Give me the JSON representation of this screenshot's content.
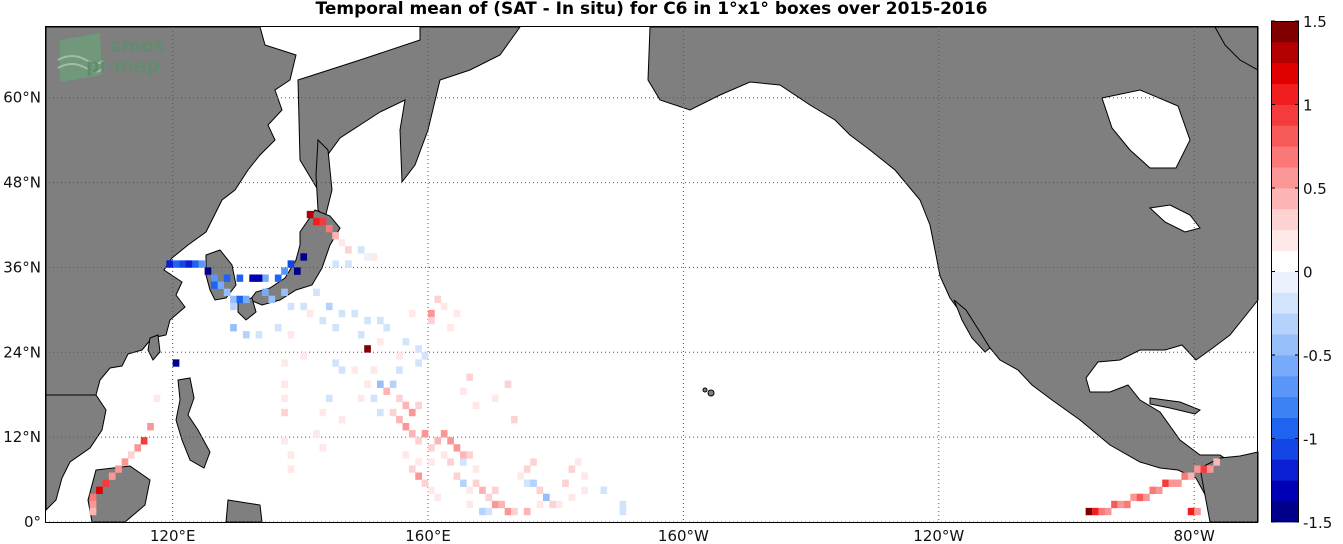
{
  "title": "Temporal mean of (SAT - In situ) for C6 in 1°x1° boxes over 2015-2016",
  "logo": {
    "line1": "smos",
    "line2": "pi-mep"
  },
  "map": {
    "projection": "equirectangular",
    "lon_range": [
      100,
      -70
    ],
    "lat_range": [
      0,
      70
    ],
    "land_color": "#7f7f7f",
    "ocean_color": "#ffffff",
    "grid": "dotted",
    "lon_ticks": [
      {
        "lon": 120,
        "label": "120°E"
      },
      {
        "lon": 160,
        "label": "160°E"
      },
      {
        "lon": -160,
        "label": "160°W"
      },
      {
        "lon": -120,
        "label": "120°W"
      },
      {
        "lon": -80,
        "label": "80°W"
      }
    ],
    "lat_ticks": [
      {
        "lat": 0,
        "label": "0°"
      },
      {
        "lat": 12,
        "label": "12°N"
      },
      {
        "lat": 24,
        "label": "24°N"
      },
      {
        "lat": 36,
        "label": "36°N"
      },
      {
        "lat": 48,
        "label": "48°N"
      },
      {
        "lat": 60,
        "label": "60°N"
      }
    ]
  },
  "colorbar": {
    "min": -1.5,
    "max": 1.5,
    "tick_values": [
      1.5,
      1,
      0.5,
      0,
      -0.5,
      -1,
      -1.5
    ],
    "tick_labels": [
      "1.5",
      "1",
      "0.5",
      "0",
      "-0.5",
      "-1",
      "-1.5"
    ],
    "colors": [
      "#00008b",
      "#0000b4",
      "#0a1ed2",
      "#1446e6",
      "#1e64f0",
      "#3c82f5",
      "#5a96f8",
      "#78aafa",
      "#96bef9",
      "#b4d2fb",
      "#d2e4fc",
      "#ebf2fe",
      "#ffffff",
      "#fee8e8",
      "#fdd2d2",
      "#fcb4b4",
      "#fb9696",
      "#fa7878",
      "#f85a5a",
      "#f43c3c",
      "#f01e1e",
      "#e00000",
      "#b40000",
      "#800000"
    ]
  },
  "chart_data": {
    "type": "heatmap",
    "title": "Temporal mean of (SAT - In situ) for C6 in 1°x1° boxes over 2015-2016",
    "x_label": "longitude",
    "y_label": "latitude",
    "value_range": [
      -1.5,
      1.5
    ],
    "cells": [
      {
        "lon": 141,
        "lat": 43,
        "v": 1.3
      },
      {
        "lon": 142,
        "lat": 42,
        "v": 1.0
      },
      {
        "lon": 143,
        "lat": 42,
        "v": 0.9
      },
      {
        "lon": 144,
        "lat": 41,
        "v": 0.7
      },
      {
        "lon": 145,
        "lat": 40,
        "v": 0.4
      },
      {
        "lon": 146,
        "lat": 39,
        "v": 0.2
      },
      {
        "lon": 147,
        "lat": 38,
        "v": 0.3
      },
      {
        "lon": 149,
        "lat": 38,
        "v": -0.2
      },
      {
        "lon": 150,
        "lat": 37,
        "v": -0.1
      },
      {
        "lon": 151,
        "lat": 37,
        "v": 0.15
      },
      {
        "lon": 145,
        "lat": 36,
        "v": -0.25
      },
      {
        "lon": 147,
        "lat": 36,
        "v": -0.2
      },
      {
        "lon": 140,
        "lat": 37,
        "v": -1.5
      },
      {
        "lon": 139,
        "lat": 35,
        "v": -1.4
      },
      {
        "lon": 138,
        "lat": 36,
        "v": -1.1
      },
      {
        "lon": 137,
        "lat": 35,
        "v": -0.7
      },
      {
        "lon": 136,
        "lat": 34,
        "v": -0.9
      },
      {
        "lon": 134,
        "lat": 34,
        "v": -0.6
      },
      {
        "lon": 133,
        "lat": 34,
        "v": -1.3
      },
      {
        "lon": 132,
        "lat": 34,
        "v": -1.3
      },
      {
        "lon": 130,
        "lat": 34,
        "v": -1.0
      },
      {
        "lon": 128,
        "lat": 34,
        "v": -0.9
      },
      {
        "lon": 127,
        "lat": 33,
        "v": -0.6
      },
      {
        "lon": 126,
        "lat": 34,
        "v": -0.7
      },
      {
        "lon": 126,
        "lat": 33,
        "v": -0.9
      },
      {
        "lon": 125,
        "lat": 35,
        "v": -1.5
      },
      {
        "lon": 124,
        "lat": 36,
        "v": -0.7
      },
      {
        "lon": 123,
        "lat": 36,
        "v": -0.9
      },
      {
        "lon": 122,
        "lat": 36,
        "v": -1.2
      },
      {
        "lon": 121,
        "lat": 36,
        "v": -1.1
      },
      {
        "lon": 120,
        "lat": 36,
        "v": -1.0
      },
      {
        "lon": 119,
        "lat": 36,
        "v": -1.2
      },
      {
        "lon": 128,
        "lat": 32,
        "v": -0.5
      },
      {
        "lon": 129,
        "lat": 31,
        "v": -0.4
      },
      {
        "lon": 130,
        "lat": 31,
        "v": -0.9
      },
      {
        "lon": 129,
        "lat": 30,
        "v": -0.3
      },
      {
        "lon": 131,
        "lat": 31,
        "v": -0.6
      },
      {
        "lon": 134,
        "lat": 32,
        "v": -0.6
      },
      {
        "lon": 135,
        "lat": 31,
        "v": -0.4
      },
      {
        "lon": 137,
        "lat": 32,
        "v": -0.5
      },
      {
        "lon": 138,
        "lat": 30,
        "v": -0.2
      },
      {
        "lon": 140,
        "lat": 30,
        "v": -0.2
      },
      {
        "lon": 142,
        "lat": 32,
        "v": -0.2
      },
      {
        "lon": 141,
        "lat": 29,
        "v": 0.15
      },
      {
        "lon": 144,
        "lat": 30,
        "v": -0.3
      },
      {
        "lon": 146,
        "lat": 29,
        "v": -0.2
      },
      {
        "lon": 148,
        "lat": 29,
        "v": -0.2
      },
      {
        "lon": 143,
        "lat": 28,
        "v": -0.2
      },
      {
        "lon": 150,
        "lat": 28,
        "v": -0.2
      },
      {
        "lon": 152,
        "lat": 28,
        "v": -0.25
      },
      {
        "lon": 153,
        "lat": 27,
        "v": -0.15
      },
      {
        "lon": 145,
        "lat": 27,
        "v": -0.2
      },
      {
        "lon": 136,
        "lat": 27,
        "v": -0.15
      },
      {
        "lon": 138,
        "lat": 26,
        "v": 0.15
      },
      {
        "lon": 129,
        "lat": 27,
        "v": -0.5
      },
      {
        "lon": 131,
        "lat": 26,
        "v": -0.3
      },
      {
        "lon": 133,
        "lat": 26,
        "v": -0.2
      },
      {
        "lon": 149,
        "lat": 26,
        "v": -0.2
      },
      {
        "lon": 152,
        "lat": 25,
        "v": 0.2
      },
      {
        "lon": 156,
        "lat": 25,
        "v": -0.15
      },
      {
        "lon": 158,
        "lat": 24,
        "v": -0.2
      },
      {
        "lon": 159,
        "lat": 23,
        "v": -0.15
      },
      {
        "lon": 150,
        "lat": 24,
        "v": 1.4
      },
      {
        "lon": 155,
        "lat": 23,
        "v": 0.15
      },
      {
        "lon": 145,
        "lat": 22,
        "v": -0.15
      },
      {
        "lon": 146,
        "lat": 21,
        "v": -0.2
      },
      {
        "lon": 148,
        "lat": 21,
        "v": 0.15
      },
      {
        "lon": 151,
        "lat": 21,
        "v": 0.2
      },
      {
        "lon": 155,
        "lat": 21,
        "v": -0.15
      },
      {
        "lon": 158,
        "lat": 22,
        "v": -0.2
      },
      {
        "lon": 160,
        "lat": 29,
        "v": 0.5
      },
      {
        "lon": 161,
        "lat": 31,
        "v": 0.3
      },
      {
        "lon": 162,
        "lat": 30,
        "v": 0.2
      },
      {
        "lon": 157,
        "lat": 29,
        "v": 0.2
      },
      {
        "lon": 160,
        "lat": 28,
        "v": 0.3
      },
      {
        "lon": 163,
        "lat": 27,
        "v": 0.2
      },
      {
        "lon": 164,
        "lat": 29,
        "v": 0.15
      },
      {
        "lon": 140,
        "lat": 23,
        "v": 0.2
      },
      {
        "lon": 137,
        "lat": 22,
        "v": 0.15
      },
      {
        "lon": 120,
        "lat": 22,
        "v": -1.4
      },
      {
        "lon": 152,
        "lat": 19,
        "v": -0.5
      },
      {
        "lon": 153,
        "lat": 18,
        "v": 0.4
      },
      {
        "lon": 154,
        "lat": 19,
        "v": -0.3
      },
      {
        "lon": 150,
        "lat": 19,
        "v": 0.2
      },
      {
        "lon": 149,
        "lat": 17,
        "v": 0.2
      },
      {
        "lon": 151,
        "lat": 17,
        "v": -0.2
      },
      {
        "lon": 155,
        "lat": 17,
        "v": 0.3
      },
      {
        "lon": 156,
        "lat": 16,
        "v": 0.4
      },
      {
        "lon": 157,
        "lat": 15,
        "v": 0.5
      },
      {
        "lon": 158,
        "lat": 16,
        "v": 0.3
      },
      {
        "lon": 154,
        "lat": 15,
        "v": 0.3
      },
      {
        "lon": 152,
        "lat": 15,
        "v": -0.2
      },
      {
        "lon": 155,
        "lat": 14,
        "v": 0.4
      },
      {
        "lon": 156,
        "lat": 13,
        "v": 0.5
      },
      {
        "lon": 157,
        "lat": 12,
        "v": 0.4
      },
      {
        "lon": 158,
        "lat": 11,
        "v": 0.3
      },
      {
        "lon": 159,
        "lat": 12,
        "v": 0.5
      },
      {
        "lon": 160,
        "lat": 10,
        "v": 0.3
      },
      {
        "lon": 161,
        "lat": 11,
        "v": 0.4
      },
      {
        "lon": 162,
        "lat": 12,
        "v": 0.5
      },
      {
        "lon": 163,
        "lat": 11,
        "v": 0.6
      },
      {
        "lon": 164,
        "lat": 10,
        "v": 0.5
      },
      {
        "lon": 165,
        "lat": 9,
        "v": 0.4
      },
      {
        "lon": 166,
        "lat": 9,
        "v": 0.3
      },
      {
        "lon": 162,
        "lat": 9,
        "v": 0.2
      },
      {
        "lon": 163,
        "lat": 8,
        "v": 0.3
      },
      {
        "lon": 160,
        "lat": 8,
        "v": 0.2
      },
      {
        "lon": 158,
        "lat": 8,
        "v": 0.15
      },
      {
        "lon": 156,
        "lat": 9,
        "v": 0.2
      },
      {
        "lon": 157,
        "lat": 7,
        "v": 0.3
      },
      {
        "lon": 158,
        "lat": 6,
        "v": 0.5
      },
      {
        "lon": 159,
        "lat": 5,
        "v": 0.3
      },
      {
        "lon": 160,
        "lat": 4,
        "v": 0.2
      },
      {
        "lon": 161,
        "lat": 3,
        "v": 0.15
      },
      {
        "lon": 164,
        "lat": 6,
        "v": 0.3
      },
      {
        "lon": 165,
        "lat": 5,
        "v": -0.3
      },
      {
        "lon": 166,
        "lat": 4,
        "v": 0.2
      },
      {
        "lon": 167,
        "lat": 5,
        "v": 0.3
      },
      {
        "lon": 168,
        "lat": 4,
        "v": 0.4
      },
      {
        "lon": 169,
        "lat": 3,
        "v": 0.3
      },
      {
        "lon": 170,
        "lat": 2,
        "v": 0.5
      },
      {
        "lon": 170,
        "lat": 4,
        "v": 0.3
      },
      {
        "lon": 171,
        "lat": 2,
        "v": 0.4
      },
      {
        "lon": 172,
        "lat": 1,
        "v": 0.6
      },
      {
        "lon": 173,
        "lat": 1,
        "v": 0.3
      },
      {
        "lon": 166,
        "lat": 2,
        "v": 0.2
      },
      {
        "lon": 168,
        "lat": 1,
        "v": -0.3
      },
      {
        "lon": 169,
        "lat": 1,
        "v": -0.2
      },
      {
        "lon": 165,
        "lat": 8,
        "v": -0.15
      },
      {
        "lon": 167,
        "lat": 7,
        "v": 0.15
      },
      {
        "lon": 175,
        "lat": 1,
        "v": 0.4
      },
      {
        "lon": 173,
        "lat": 14,
        "v": 0.3
      },
      {
        "lon": 166,
        "lat": 20,
        "v": 0.3
      },
      {
        "lon": 165,
        "lat": 18,
        "v": 0.2
      },
      {
        "lon": 167,
        "lat": 16,
        "v": 0.2
      },
      {
        "lon": 170,
        "lat": 17,
        "v": 0.15
      },
      {
        "lon": 172,
        "lat": 19,
        "v": 0.3
      },
      {
        "lon": 175,
        "lat": 5,
        "v": -0.2
      },
      {
        "lon": 176,
        "lat": 5,
        "v": -0.3
      },
      {
        "lon": 177,
        "lat": 4,
        "v": 0.3
      },
      {
        "lon": 178,
        "lat": 3,
        "v": -0.5
      },
      {
        "lon": 177,
        "lat": 2,
        "v": 0.2
      },
      {
        "lon": 179,
        "lat": 2,
        "v": 0.3
      },
      {
        "lon": 180,
        "lat": 2,
        "v": 0.2
      },
      {
        "lon": -179,
        "lat": 5,
        "v": 0.3
      },
      {
        "lon": -178,
        "lat": 3,
        "v": 0.2
      },
      {
        "lon": -176,
        "lat": 6,
        "v": 0.15
      },
      {
        "lon": -176,
        "lat": 4,
        "v": 0.15
      },
      {
        "lon": -173,
        "lat": 4,
        "v": -0.2
      },
      {
        "lon": -170,
        "lat": 2,
        "v": -0.2
      },
      {
        "lon": -170,
        "lat": 1,
        "v": -0.25
      },
      {
        "lon": -177,
        "lat": 8,
        "v": 0.2
      },
      {
        "lon": -178,
        "lat": 7,
        "v": 0.3
      },
      {
        "lon": 176,
        "lat": 8,
        "v": 0.3
      },
      {
        "lon": 175,
        "lat": 7,
        "v": 0.3
      },
      {
        "lon": 174,
        "lat": 6,
        "v": 0.15
      },
      {
        "lon": 143,
        "lat": 10,
        "v": 0.2
      },
      {
        "lon": 142,
        "lat": 12,
        "v": 0.15
      },
      {
        "lon": 143,
        "lat": 15,
        "v": 0.15
      },
      {
        "lon": 144,
        "lat": 17,
        "v": -0.15
      },
      {
        "lon": 146,
        "lat": 14,
        "v": 0.2
      },
      {
        "lon": 137,
        "lat": 15,
        "v": 0.3
      },
      {
        "lon": 137,
        "lat": 17,
        "v": 0.2
      },
      {
        "lon": 137,
        "lat": 19,
        "v": 0.2
      },
      {
        "lon": 137,
        "lat": 11,
        "v": 0.15
      },
      {
        "lon": 138,
        "lat": 9,
        "v": 0.2
      },
      {
        "lon": 138,
        "lat": 7,
        "v": 0.15
      },
      {
        "lon": 117,
        "lat": 17,
        "v": 0.2
      },
      {
        "lon": 115,
        "lat": 11,
        "v": 0.9
      },
      {
        "lon": 116,
        "lat": 13,
        "v": 0.6
      },
      {
        "lon": 114,
        "lat": 10,
        "v": 0.5
      },
      {
        "lon": 113,
        "lat": 9,
        "v": 0.3
      },
      {
        "lon": 112,
        "lat": 8,
        "v": 0.5
      },
      {
        "lon": 111,
        "lat": 7,
        "v": 0.6
      },
      {
        "lon": 110,
        "lat": 6,
        "v": 0.5
      },
      {
        "lon": 109,
        "lat": 5,
        "v": 0.9
      },
      {
        "lon": 108,
        "lat": 4,
        "v": 1.2
      },
      {
        "lon": 107,
        "lat": 3,
        "v": 0.7
      },
      {
        "lon": 107,
        "lat": 2,
        "v": 0.5
      },
      {
        "lon": 107,
        "lat": 1,
        "v": 0.4
      },
      {
        "lon": -97,
        "lat": 1,
        "v": 1.4
      },
      {
        "lon": -96,
        "lat": 1,
        "v": 1.1
      },
      {
        "lon": -95,
        "lat": 1,
        "v": 0.7
      },
      {
        "lon": -94,
        "lat": 1,
        "v": 0.5
      },
      {
        "lon": -93,
        "lat": 2,
        "v": 0.8
      },
      {
        "lon": -92,
        "lat": 2,
        "v": 0.6
      },
      {
        "lon": -91,
        "lat": 2,
        "v": 0.7
      },
      {
        "lon": -90,
        "lat": 3,
        "v": 0.6
      },
      {
        "lon": -89,
        "lat": 3,
        "v": 0.8
      },
      {
        "lon": -88,
        "lat": 3,
        "v": 0.5
      },
      {
        "lon": -87,
        "lat": 4,
        "v": 0.7
      },
      {
        "lon": -86,
        "lat": 4,
        "v": 0.5
      },
      {
        "lon": -85,
        "lat": 5,
        "v": 0.9
      },
      {
        "lon": -84,
        "lat": 5,
        "v": 0.6
      },
      {
        "lon": -83,
        "lat": 5,
        "v": 0.5
      },
      {
        "lon": -82,
        "lat": 6,
        "v": 0.7
      },
      {
        "lon": -81,
        "lat": 6,
        "v": 0.4
      },
      {
        "lon": -80,
        "lat": 7,
        "v": 0.5
      },
      {
        "lon": -79,
        "lat": 7,
        "v": 0.9
      },
      {
        "lon": -78,
        "lat": 7,
        "v": 0.6
      },
      {
        "lon": -77,
        "lat": 8,
        "v": 0.4
      },
      {
        "lon": -81,
        "lat": 1,
        "v": 1.1
      },
      {
        "lon": -80,
        "lat": 1,
        "v": 0.6
      }
    ]
  }
}
